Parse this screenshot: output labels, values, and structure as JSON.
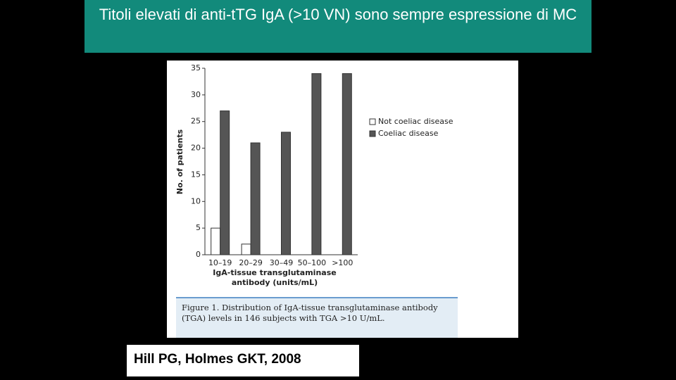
{
  "slide_title": "Titoli elevati di anti-tTG IgA (>10 VN) sono sempre espressione di MC",
  "chart_data": {
    "type": "bar",
    "ylabel": "No. of patients",
    "xlabel": "IgA-tissue transglutaminase antibody (units/mL)",
    "categories": [
      "10–19",
      "20–29",
      "30–49",
      "50–100",
      ">100"
    ],
    "series": [
      {
        "name": "Not coeliac disease",
        "color": "#ffffff",
        "values": [
          5,
          2,
          0,
          0,
          0
        ]
      },
      {
        "name": "Coeliac disease",
        "color": "#555555",
        "values": [
          27,
          21,
          23,
          34,
          34
        ]
      }
    ],
    "ylim": [
      0,
      35
    ],
    "yticks": [
      0,
      5,
      10,
      15,
      20,
      25,
      30,
      35
    ],
    "grid": false
  },
  "figure_caption": "Figure 1. Distribution of IgA-tissue transglutaminase antibody (TGA) levels in 146 subjects with TGA >10 U/mL.",
  "citation": "Hill PG, Holmes GKT, 2008"
}
